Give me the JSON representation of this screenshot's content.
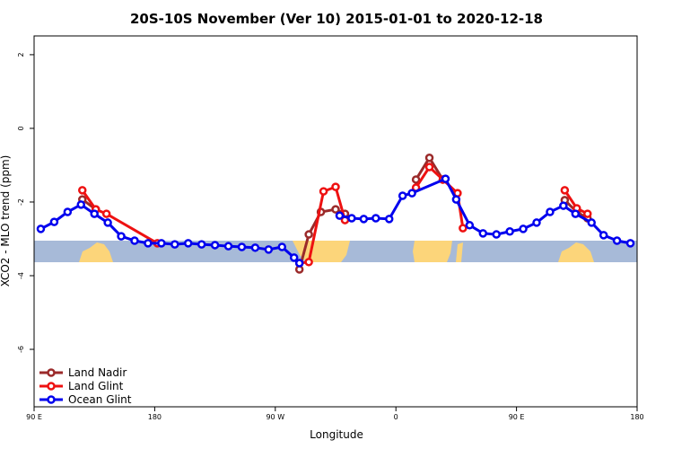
{
  "chart_data": {
    "type": "line",
    "title": "20S-10S November (Ver 10)   2015-01-01 to 2020-12-18",
    "x_label": "Longitude",
    "y_label": "XCO2 - MLO trend (ppm)",
    "xlim": [
      90,
      540
    ],
    "ylim": [
      -7.56,
      2.51
    ],
    "xticks": [
      {
        "value": 90,
        "label": "90 E"
      },
      {
        "value": 180,
        "label": "180"
      },
      {
        "value": 270,
        "label": "90 W"
      },
      {
        "value": 360,
        "label": "0"
      },
      {
        "value": 450,
        "label": "90 E"
      },
      {
        "value": 540,
        "label": "180"
      }
    ],
    "yticks": [
      2,
      0,
      -2,
      -4,
      -6
    ],
    "legend": "bottom-left",
    "series": [
      {
        "name": "Land Nadir",
        "color": "#9b2a2a",
        "x": [
          126,
          136,
          180,
          288,
          295,
          304,
          315,
          322,
          350,
          375,
          385,
          395,
          440,
          486,
          495,
          503
        ],
        "values": [
          -1.93,
          -2.2,
          null,
          -3.83,
          -2.88,
          -2.27,
          -2.2,
          -2.32,
          null,
          -1.39,
          -0.8,
          -1.39,
          null,
          -1.95,
          -2.27,
          -2.44
        ]
      },
      {
        "name": "Land Glint",
        "color": "#ee1111",
        "x": [
          126,
          136,
          144,
          182,
          240,
          288,
          295,
          306,
          315,
          322,
          350,
          375,
          385,
          395,
          406,
          410,
          440,
          486,
          495,
          503
        ],
        "values": [
          -1.68,
          -2.2,
          -2.32,
          -3.12,
          null,
          -3.66,
          -3.63,
          -1.71,
          -1.59,
          -2.49,
          null,
          -1.61,
          -1.05,
          -1.39,
          -1.76,
          -2.71,
          null,
          -1.68,
          -2.17,
          -2.32
        ]
      },
      {
        "name": "Ocean Glint",
        "color": "#0000ee",
        "x": [
          95,
          105,
          115,
          125,
          135,
          145,
          155,
          165,
          175,
          185,
          195,
          205,
          215,
          225,
          235,
          245,
          255,
          265,
          275,
          284,
          288,
          300,
          318,
          327,
          336,
          345,
          355,
          365,
          372,
          397,
          405,
          415,
          425,
          435,
          445,
          455,
          465,
          475,
          485,
          494,
          506,
          515,
          525,
          535
        ],
        "values": [
          -2.73,
          -2.54,
          -2.27,
          -2.07,
          -2.32,
          -2.56,
          -2.93,
          -3.05,
          -3.12,
          -3.12,
          -3.15,
          -3.12,
          -3.15,
          -3.17,
          -3.2,
          -3.22,
          -3.24,
          -3.29,
          -3.22,
          -3.51,
          -3.66,
          null,
          -2.37,
          -2.44,
          -2.46,
          -2.44,
          -2.46,
          -1.83,
          -1.76,
          -1.37,
          -1.93,
          -2.63,
          -2.85,
          -2.88,
          -2.8,
          -2.73,
          -2.56,
          -2.27,
          -2.1,
          -2.32,
          -2.56,
          -2.9,
          -3.05,
          -3.12
        ]
      }
    ]
  }
}
